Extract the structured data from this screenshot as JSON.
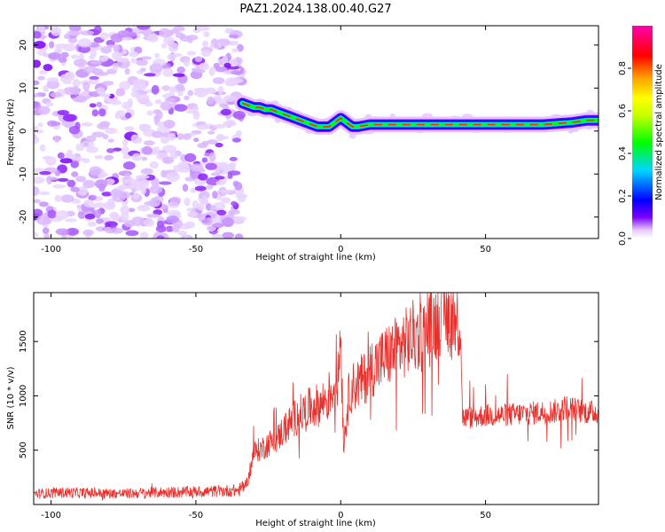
{
  "title": "PAZ1.2024.138.00.40.G27",
  "chart_data": [
    {
      "type": "heatmap",
      "xlabel": "Height of straight line (km)",
      "ylabel": "Frequency (Hz)",
      "xlim": [
        -106,
        89
      ],
      "ylim": [
        -25,
        24.5
      ],
      "xticks": [
        -100,
        -50,
        0,
        50
      ],
      "yticks": [
        -20,
        -10,
        0,
        10,
        20
      ],
      "grid": false,
      "ridge": {
        "x": [
          -34,
          -32,
          -30,
          -28,
          -26,
          -24,
          -22,
          -20,
          -18,
          -16,
          -14,
          -12,
          -10,
          -8,
          -6,
          -4,
          -2,
          0,
          2,
          4,
          6,
          10,
          20,
          30,
          40,
          50,
          60,
          70,
          80,
          85,
          89
        ],
        "y": [
          6.5,
          6,
          5.5,
          5.5,
          5,
          5,
          4.5,
          4,
          3.5,
          3,
          2.5,
          2,
          1.5,
          1,
          1,
          1,
          2,
          3,
          2,
          1,
          1,
          1.5,
          1.5,
          1.5,
          1.5,
          1.5,
          1.5,
          1.5,
          2,
          2.5,
          2.5
        ]
      },
      "noise_region_x": [
        -106,
        -34
      ],
      "colorbar": {
        "label": "Normalized spectral amplitude",
        "range": [
          0,
          1
        ],
        "ticks": [
          0.0,
          0.2,
          0.4,
          0.6,
          0.8
        ],
        "colormap": [
          "#ffffff",
          "#e7c8ff",
          "#7b00ff",
          "#0000ff",
          "#00d5ff",
          "#00ff00",
          "#c8ff00",
          "#ffff00",
          "#ff9900",
          "#ff0000",
          "#ff00aa"
        ]
      }
    },
    {
      "type": "line",
      "xlabel": "Height of straight line (km)",
      "ylabel": "SNR (10 * v/v)",
      "xlim": [
        -106,
        89
      ],
      "ylim": [
        0,
        1950
      ],
      "xticks": [
        -100,
        -50,
        0,
        50
      ],
      "yticks": [
        500,
        1000,
        1500
      ],
      "grid": false,
      "series": [
        {
          "color": "#e8302c",
          "x": [
            -106,
            -95,
            -85,
            -75,
            -65,
            -55,
            -45,
            -35,
            -32,
            -30,
            -27,
            -25,
            -22,
            -20,
            -17,
            -15,
            -12,
            -10,
            -7,
            -5,
            -3,
            -1,
            0,
            1,
            3,
            5,
            8,
            10,
            13,
            15,
            18,
            20,
            23,
            25,
            28,
            30,
            33,
            35,
            38,
            40,
            41.5,
            42,
            45,
            50,
            55,
            60,
            65,
            70,
            75,
            78,
            80,
            85,
            89
          ],
          "y": [
            100,
            110,
            105,
            100,
            110,
            115,
            120,
            130,
            220,
            480,
            520,
            560,
            600,
            680,
            760,
            820,
            860,
            900,
            920,
            980,
            1050,
            1150,
            1600,
            560,
            1050,
            1100,
            1150,
            1250,
            1300,
            1350,
            1400,
            1450,
            1500,
            1550,
            1550,
            1600,
            1680,
            1780,
            1700,
            1680,
            1650,
            800,
            800,
            820,
            820,
            830,
            840,
            850,
            860,
            900,
            880,
            850,
            850
          ]
        }
      ]
    }
  ]
}
